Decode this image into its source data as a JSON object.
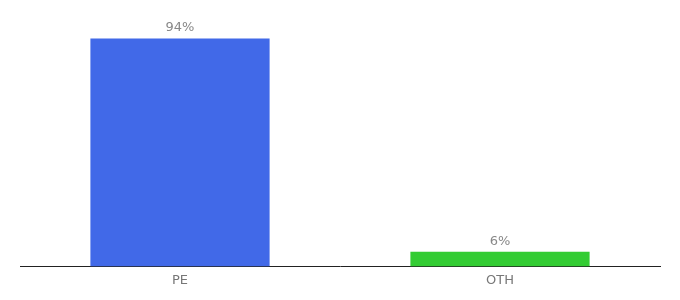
{
  "chart_data": {
    "type": "bar",
    "categories": [
      "PE",
      "OTH"
    ],
    "values": [
      94,
      6
    ],
    "value_labels": [
      "94%",
      "6%"
    ],
    "colors": [
      "#4169E8",
      "#33CC33"
    ],
    "ylim": [
      0,
      100
    ],
    "grid": false,
    "data_labels": true,
    "tick_labels": "x"
  }
}
